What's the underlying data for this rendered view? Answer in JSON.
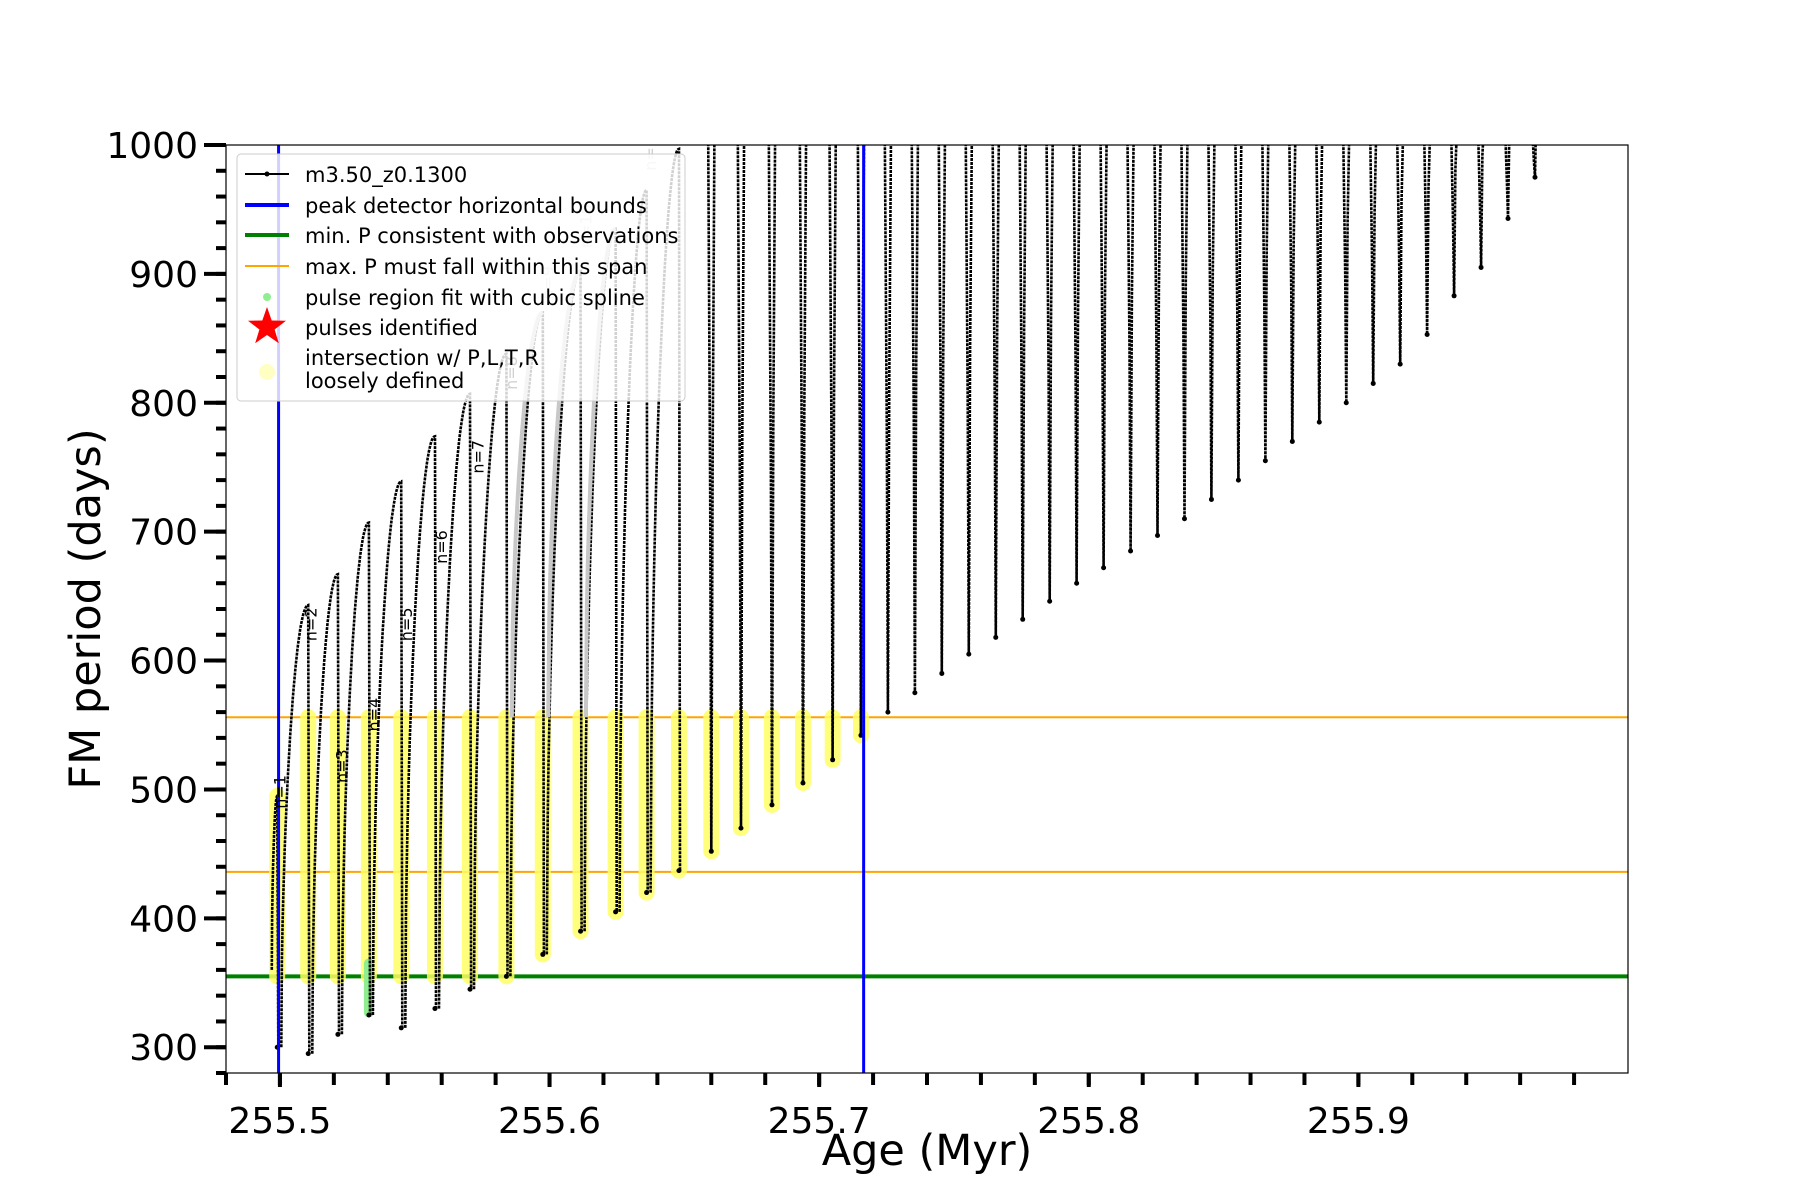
{
  "chart_data": {
    "type": "line",
    "xlabel": "Age (Myr)",
    "ylabel": "FM period (days)",
    "xlim": [
      255.48,
      256.0
    ],
    "ylim": [
      280,
      1000
    ],
    "x_ticks": [
      255.5,
      255.6,
      255.7,
      255.8,
      255.9
    ],
    "x_tick_labels": [
      "255.5",
      "255.6",
      "255.7",
      "255.8",
      "255.9"
    ],
    "y_ticks": [
      300,
      400,
      500,
      600,
      700,
      800,
      900,
      1000
    ],
    "y_tick_labels": [
      "300",
      "400",
      "500",
      "600",
      "700",
      "800",
      "900",
      "1000"
    ],
    "series": [
      {
        "name": "m3.50_z0.1300",
        "color": "#000000",
        "kind": "pulses",
        "pulses": [
          {
            "x": 255.499,
            "min": 300,
            "max": 495
          },
          {
            "x": 255.5105,
            "min": 295,
            "max": 643
          },
          {
            "x": 255.5215,
            "min": 310,
            "max": 667
          },
          {
            "x": 255.533,
            "min": 325,
            "max": 707
          },
          {
            "x": 255.545,
            "min": 315,
            "max": 739
          },
          {
            "x": 255.5575,
            "min": 330,
            "max": 774
          },
          {
            "x": 255.5705,
            "min": 345,
            "max": 807
          },
          {
            "x": 255.584,
            "min": 355,
            "max": 838
          },
          {
            "x": 255.5975,
            "min": 372,
            "max": 870
          },
          {
            "x": 255.6115,
            "min": 390,
            "max": 902
          },
          {
            "x": 255.6245,
            "min": 405,
            "max": 935
          },
          {
            "x": 255.636,
            "min": 420,
            "max": 965
          },
          {
            "x": 255.648,
            "min": 437,
            "max": 997
          },
          {
            "x": 255.66,
            "min": 452,
            "max": 1000
          },
          {
            "x": 255.671,
            "min": 470,
            "max": 1000
          },
          {
            "x": 255.6825,
            "min": 488,
            "max": 1000
          },
          {
            "x": 255.694,
            "min": 505,
            "max": 1000
          },
          {
            "x": 255.705,
            "min": 523,
            "max": 1000
          },
          {
            "x": 255.7155,
            "min": 542,
            "max": 1000
          },
          {
            "x": 255.7255,
            "min": 560,
            "max": 1000
          },
          {
            "x": 255.7355,
            "min": 575,
            "max": 1000
          },
          {
            "x": 255.7455,
            "min": 590,
            "max": 1000
          },
          {
            "x": 255.7555,
            "min": 605,
            "max": 1000
          },
          {
            "x": 255.7655,
            "min": 618,
            "max": 1000
          },
          {
            "x": 255.7755,
            "min": 632,
            "max": 1000
          },
          {
            "x": 255.7855,
            "min": 646,
            "max": 1000
          },
          {
            "x": 255.7955,
            "min": 660,
            "max": 1000
          },
          {
            "x": 255.8055,
            "min": 672,
            "max": 1000
          },
          {
            "x": 255.8155,
            "min": 685,
            "max": 1000
          },
          {
            "x": 255.8255,
            "min": 697,
            "max": 1000
          },
          {
            "x": 255.8355,
            "min": 710,
            "max": 1000
          },
          {
            "x": 255.8455,
            "min": 725,
            "max": 1000
          },
          {
            "x": 255.8555,
            "min": 740,
            "max": 1000
          },
          {
            "x": 255.8655,
            "min": 755,
            "max": 1000
          },
          {
            "x": 255.8755,
            "min": 770,
            "max": 1000
          },
          {
            "x": 255.8855,
            "min": 785,
            "max": 1000
          },
          {
            "x": 255.8955,
            "min": 800,
            "max": 1000
          },
          {
            "x": 255.9055,
            "min": 815,
            "max": 1000
          },
          {
            "x": 255.9155,
            "min": 830,
            "max": 1000
          },
          {
            "x": 255.9255,
            "min": 853,
            "max": 1000
          },
          {
            "x": 255.9355,
            "min": 883,
            "max": 1000
          },
          {
            "x": 255.9455,
            "min": 905,
            "max": 1000
          },
          {
            "x": 255.9555,
            "min": 943,
            "max": 1000
          },
          {
            "x": 255.9655,
            "min": 975,
            "max": 1000
          }
        ]
      },
      {
        "name": "peak detector horizontal bounds",
        "color": "#0000ff",
        "kind": "vlines",
        "x": [
          255.4995,
          255.7165
        ]
      },
      {
        "name": "min. P consistent with observations",
        "color": "#008000",
        "kind": "hline",
        "y": 355
      },
      {
        "name": "max. P must fall within this span",
        "color": "#ffa500",
        "kind": "hlines",
        "y": [
          436,
          556
        ]
      },
      {
        "name": "pulse region fit with cubic spline",
        "color": "#90ee90",
        "kind": "markers"
      },
      {
        "name": "pulses identified",
        "color": "#ff0000",
        "kind": "star"
      },
      {
        "name": "intersection w/ P,L,T,R\nloosely defined",
        "color": "#ffff33",
        "kind": "highlight",
        "y_range": [
          355,
          556
        ]
      }
    ],
    "annotations": [
      {
        "text": "n=1",
        "x": 255.502,
        "y": 485,
        "shade": "black"
      },
      {
        "text": "n=2",
        "x": 255.5135,
        "y": 615,
        "shade": "black"
      },
      {
        "text": "n=3",
        "x": 255.525,
        "y": 505,
        "shade": "black"
      },
      {
        "text": "n=4",
        "x": 255.537,
        "y": 545,
        "shade": "black"
      },
      {
        "text": "n=5",
        "x": 255.549,
        "y": 615,
        "shade": "black"
      },
      {
        "text": "n=6",
        "x": 255.562,
        "y": 675,
        "shade": "black"
      },
      {
        "text": "n=7",
        "x": 255.5755,
        "y": 745,
        "shade": "black"
      },
      {
        "text": "n=8",
        "x": 255.588,
        "y": 810,
        "shade": "black"
      },
      {
        "text": "n=9",
        "x": 255.6015,
        "y": 880,
        "shade": "grey"
      },
      {
        "text": "n=10",
        "x": 255.6155,
        "y": 920,
        "shade": "grey"
      },
      {
        "text": "n=11",
        "x": 255.6395,
        "y": 980,
        "shade": "grey"
      }
    ],
    "legend_position": "top-left",
    "grid": false
  },
  "colors": {
    "pulse_line": "#000000",
    "bounds": "#0000ff",
    "min_period": "#008000",
    "max_period_span": "#ffa500",
    "spline": "#90ee90",
    "identified": "#ff0000",
    "loose": "#ffff66"
  }
}
